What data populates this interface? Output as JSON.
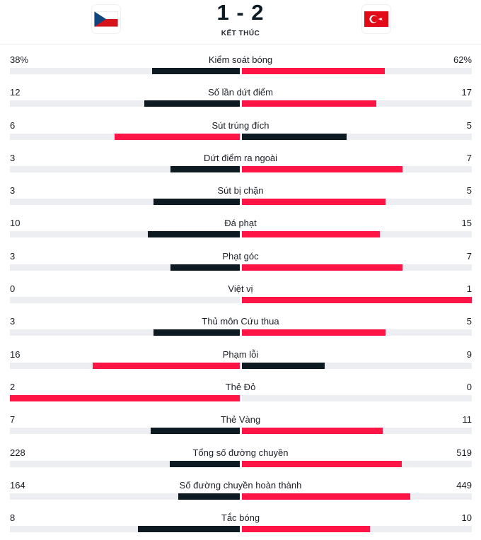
{
  "colors": {
    "dark": "#0e1a22",
    "accent": "#ff1446",
    "track": "#eceef1"
  },
  "match": {
    "score": "1 - 2",
    "status": "KẾT THÚC",
    "home_flag_icon": "czech-flag-icon",
    "away_flag_icon": "turkey-flag-icon"
  },
  "stats": [
    {
      "label": "Kiểm soát bóng",
      "home": "38%",
      "away": "62%",
      "home_share": 0.38,
      "away_share": 0.62,
      "leader": "away"
    },
    {
      "label": "Số lần dứt điểm",
      "home": "12",
      "away": "17",
      "home_share": 0.414,
      "away_share": 0.586,
      "leader": "away"
    },
    {
      "label": "Sút trúng đích",
      "home": "6",
      "away": "5",
      "home_share": 0.545,
      "away_share": 0.455,
      "leader": "home"
    },
    {
      "label": "Dứt điểm ra ngoài",
      "home": "3",
      "away": "7",
      "home_share": 0.3,
      "away_share": 0.7,
      "leader": "away"
    },
    {
      "label": "Sút bị chặn",
      "home": "3",
      "away": "5",
      "home_share": 0.375,
      "away_share": 0.625,
      "leader": "away"
    },
    {
      "label": "Đá phạt",
      "home": "10",
      "away": "15",
      "home_share": 0.4,
      "away_share": 0.6,
      "leader": "away"
    },
    {
      "label": "Phạt góc",
      "home": "3",
      "away": "7",
      "home_share": 0.3,
      "away_share": 0.7,
      "leader": "away"
    },
    {
      "label": "Việt vị",
      "home": "0",
      "away": "1",
      "home_share": 0,
      "away_share": 1,
      "leader": "away"
    },
    {
      "label": "Thủ môn Cứu thua",
      "home": "3",
      "away": "5",
      "home_share": 0.375,
      "away_share": 0.625,
      "leader": "away"
    },
    {
      "label": "Phạm lỗi",
      "home": "16",
      "away": "9",
      "home_share": 0.64,
      "away_share": 0.36,
      "leader": "home"
    },
    {
      "label": "Thẻ Đỏ",
      "home": "2",
      "away": "0",
      "home_share": 1,
      "away_share": 0,
      "leader": "home"
    },
    {
      "label": "Thẻ Vàng",
      "home": "7",
      "away": "11",
      "home_share": 0.389,
      "away_share": 0.611,
      "leader": "away"
    },
    {
      "label": "Tổng số đường chuyền",
      "home": "228",
      "away": "519",
      "home_share": 0.305,
      "away_share": 0.695,
      "leader": "away"
    },
    {
      "label": "Số đường chuyền hoàn thành",
      "home": "164",
      "away": "449",
      "home_share": 0.268,
      "away_share": 0.732,
      "leader": "away"
    },
    {
      "label": "Tắc bóng",
      "home": "8",
      "away": "10",
      "home_share": 0.444,
      "away_share": 0.556,
      "leader": "away"
    }
  ]
}
